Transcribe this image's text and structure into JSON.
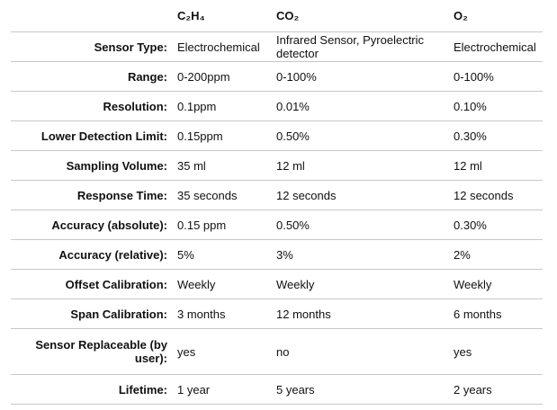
{
  "table": {
    "columns": [
      "C₂H₄",
      "CO₂",
      "O₂"
    ],
    "rows": [
      [
        "Sensor Type:",
        "Electrochemical",
        "Infrared Sensor, Pyroelectric detector",
        "Electrochemical"
      ],
      [
        "Range:",
        "0-200ppm",
        "0-100%",
        "0-100%"
      ],
      [
        "Resolution:",
        "0.1ppm",
        "0.01%",
        "0.10%"
      ],
      [
        "Lower Detection Limit:",
        "0.15ppm",
        "0.50%",
        "0.30%"
      ],
      [
        "Sampling Volume:",
        "35 ml",
        "12 ml",
        "12 ml"
      ],
      [
        "Response Time:",
        "35 seconds",
        "12 seconds",
        "12 seconds"
      ],
      [
        "Accuracy (absolute):",
        "0.15 ppm",
        "0.50%",
        "0.30%"
      ],
      [
        "Accuracy (relative):",
        "5%",
        "3%",
        "2%"
      ],
      [
        "Offset Calibration:",
        "Weekly",
        "Weekly",
        "Weekly"
      ],
      [
        "Span Calibration:",
        "3 months",
        "12 months",
        "6 months"
      ],
      [
        "Sensor Replaceable (by user):",
        "yes",
        "no",
        "yes"
      ],
      [
        "Lifetime:",
        "1 year",
        "5 years",
        "2 years"
      ]
    ]
  }
}
